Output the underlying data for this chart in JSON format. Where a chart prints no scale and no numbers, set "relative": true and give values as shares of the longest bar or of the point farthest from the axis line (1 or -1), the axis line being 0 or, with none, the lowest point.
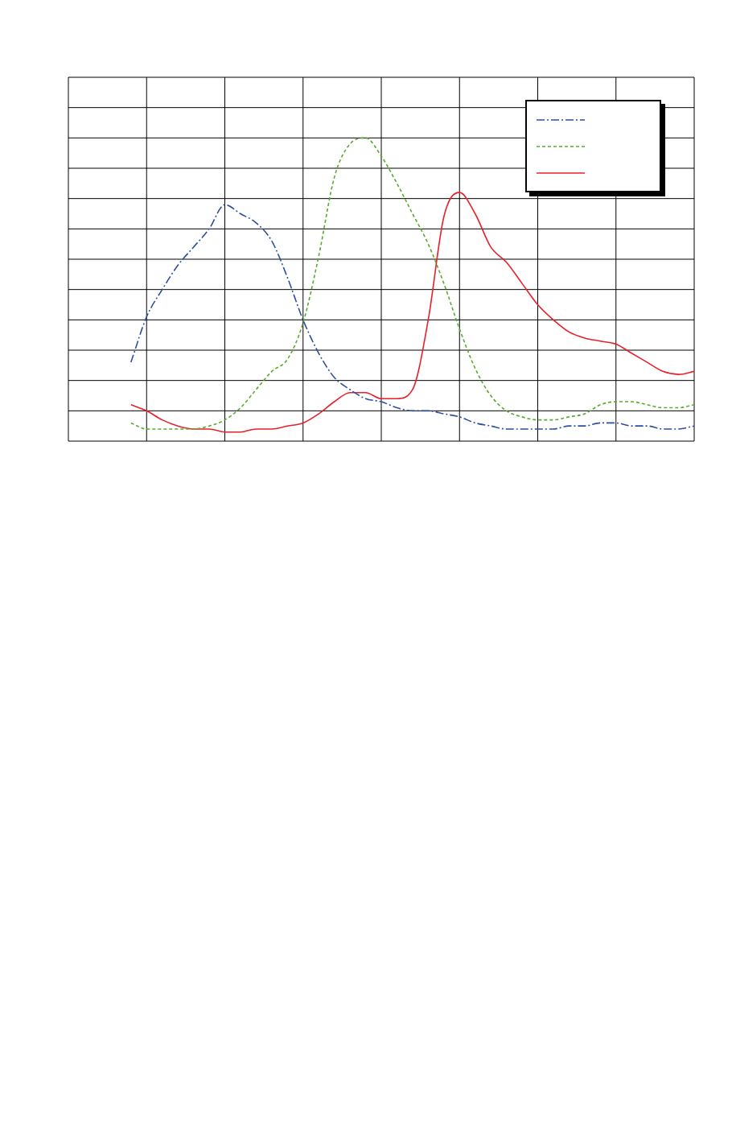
{
  "chart_data": {
    "type": "line",
    "relative": true,
    "grid": true,
    "categories": [
      null,
      null,
      null,
      null,
      null,
      null,
      null,
      null,
      null,
      null,
      null,
      null,
      null,
      null,
      null,
      null,
      null,
      null,
      null,
      null,
      null,
      null,
      null,
      null,
      null,
      null,
      null,
      null,
      null,
      null,
      null,
      null,
      null,
      null,
      null,
      null,
      null,
      null,
      null,
      null,
      null
    ],
    "series": [
      {
        "color": "#2e4fa0",
        "line_style": "dashed",
        "values": [
          null,
          null,
          null,
          null,
          0.26,
          0.41,
          0.5,
          0.58,
          0.64,
          0.7,
          0.78,
          0.75,
          0.72,
          0.66,
          0.54,
          0.4,
          0.29,
          0.21,
          0.17,
          0.14,
          0.13,
          0.11,
          0.1,
          0.1,
          0.09,
          0.08,
          0.06,
          0.05,
          0.04,
          0.04,
          0.04,
          0.04,
          0.05,
          0.05,
          0.06,
          0.06,
          0.05,
          0.05,
          0.04,
          0.04,
          0.05
        ]
      },
      {
        "color": "#5aaa2e",
        "line_style": "dotted",
        "values": [
          null,
          null,
          null,
          null,
          0.06,
          0.04,
          0.04,
          0.04,
          0.04,
          0.05,
          0.07,
          0.11,
          0.17,
          0.23,
          0.27,
          0.39,
          0.61,
          0.87,
          0.98,
          1.0,
          0.94,
          0.85,
          0.75,
          0.65,
          0.52,
          0.37,
          0.24,
          0.15,
          0.1,
          0.08,
          0.07,
          0.07,
          0.08,
          0.09,
          0.12,
          0.13,
          0.13,
          0.12,
          0.11,
          0.11,
          0.12
        ]
      },
      {
        "color": "#e8202a",
        "line_style": "solid",
        "values": [
          null,
          null,
          null,
          null,
          0.12,
          0.1,
          0.07,
          0.05,
          0.04,
          0.04,
          0.03,
          0.03,
          0.04,
          0.04,
          0.05,
          0.06,
          0.09,
          0.13,
          0.16,
          0.16,
          0.14,
          0.14,
          0.17,
          0.4,
          0.74,
          0.82,
          0.75,
          0.64,
          0.59,
          0.52,
          0.45,
          0.4,
          0.36,
          0.34,
          0.33,
          0.32,
          0.29,
          0.26,
          0.23,
          0.22,
          0.23
        ]
      }
    ]
  }
}
